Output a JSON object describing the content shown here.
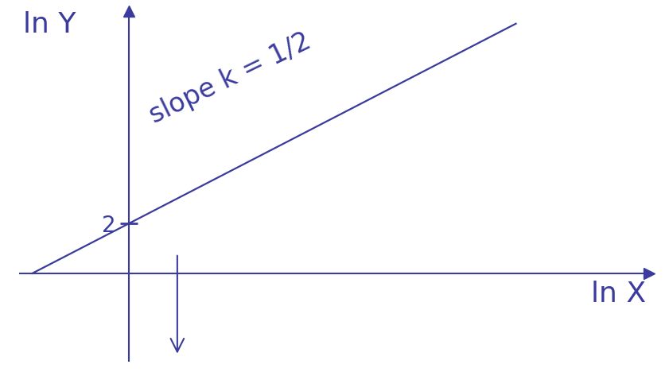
{
  "chart_data": {
    "type": "line",
    "xlabel": "ln X",
    "ylabel": "ln Y",
    "annotations": [
      "slope k = 1/2"
    ],
    "x": [
      -4,
      16
    ],
    "series": [
      {
        "values": [
          0,
          10
        ],
        "color": "#3b3b9e",
        "line_style": "solid"
      }
    ],
    "xlim": [
      -4.5,
      21.5
    ],
    "ylim": [
      -3.5,
      10.5
    ],
    "xticks": [],
    "yticks": [
      2
    ],
    "tick_labels": "y",
    "grid": false,
    "color": "#3b3b9e"
  }
}
